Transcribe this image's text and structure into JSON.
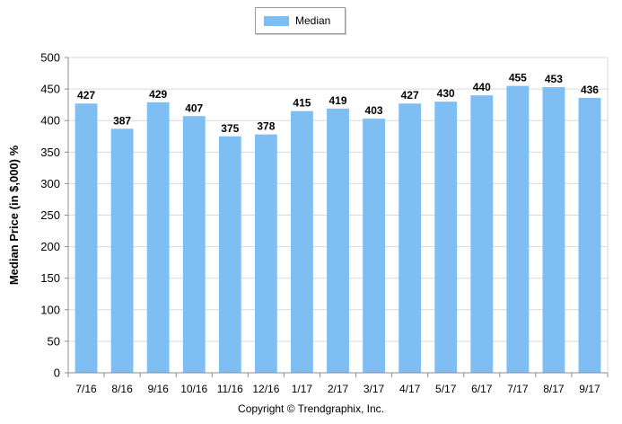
{
  "legend": {
    "label": "Median"
  },
  "copyright": "Copyright © Trendgraphix, Inc.",
  "colors": {
    "bar": "#7fbef3",
    "grid": "#d9d9d9",
    "axis": "#8c8c8c"
  },
  "chart_data": {
    "type": "bar",
    "categories": [
      "7/16",
      "8/16",
      "9/16",
      "10/16",
      "11/16",
      "12/16",
      "1/17",
      "2/17",
      "3/17",
      "4/17",
      "5/17",
      "6/17",
      "7/17",
      "8/17",
      "9/17"
    ],
    "series": [
      {
        "name": "Median",
        "values": [
          427,
          387,
          429,
          407,
          375,
          378,
          415,
          419,
          403,
          427,
          430,
          440,
          455,
          453,
          436
        ]
      }
    ],
    "ylabel": "Median Price (in $,000) %",
    "ylim": [
      0,
      500
    ],
    "yticks": [
      0,
      50,
      100,
      150,
      200,
      250,
      300,
      350,
      400,
      450,
      500
    ],
    "grid": true,
    "legend": "top-center",
    "data_labels": true
  }
}
